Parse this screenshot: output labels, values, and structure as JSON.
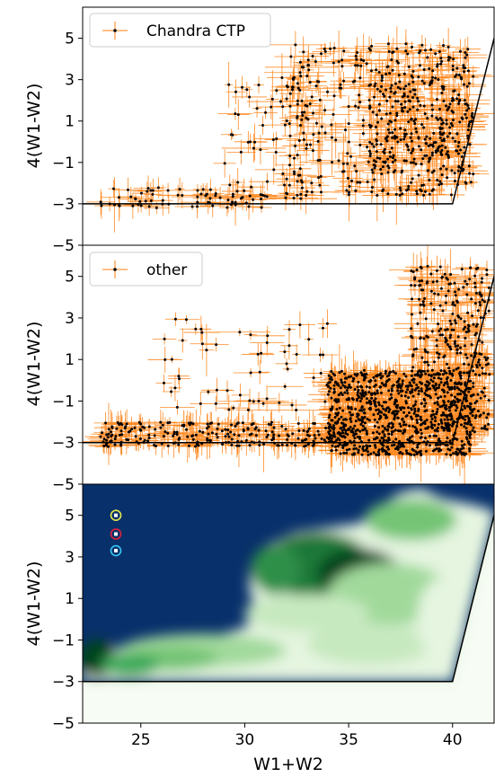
{
  "chart_data": [
    {
      "type": "scatter",
      "legend": "Chandra CTP",
      "legend_position": "top-left",
      "ylabel": "4(W1-W2)",
      "xlim": [
        22.2,
        42
      ],
      "ylim": [
        -5,
        6.5
      ],
      "yticks": [
        "5",
        "3",
        "1",
        "−1",
        "−3",
        "−5"
      ],
      "error_bars": true,
      "boundary": [
        [
          22.2,
          -3
        ],
        [
          40,
          -3
        ],
        [
          42,
          5
        ]
      ],
      "clusters": [
        {
          "x": [
            23,
            31
          ],
          "y": [
            -3.2,
            -2.2
          ],
          "n": 70
        },
        {
          "x": [
            29,
            33
          ],
          "y": [
            -2.8,
            3.6
          ],
          "n": 60
        },
        {
          "x": [
            32,
            41
          ],
          "y": [
            -2.6,
            4.8
          ],
          "n": 380
        },
        {
          "x": [
            36,
            41
          ],
          "y": [
            -1.5,
            3.5
          ],
          "n": 220
        }
      ]
    },
    {
      "type": "scatter",
      "legend": "other",
      "legend_position": "top-left",
      "ylabel": "4(W1-W2)",
      "xlim": [
        22.2,
        42
      ],
      "ylim": [
        -5,
        6.5
      ],
      "yticks": [
        "5",
        "3",
        "1",
        "−1",
        "−3",
        "−5"
      ],
      "error_bars": true,
      "boundary": [
        [
          22.2,
          -3
        ],
        [
          40,
          -3
        ],
        [
          42,
          5
        ]
      ],
      "clusters": [
        {
          "x": [
            23,
            35
          ],
          "y": [
            -3.2,
            -2.0
          ],
          "n": 250
        },
        {
          "x": [
            34,
            41
          ],
          "y": [
            -3.6,
            0.5
          ],
          "n": 900
        },
        {
          "x": [
            38,
            41.8
          ],
          "y": [
            -2.5,
            5.5
          ],
          "n": 350
        },
        {
          "x": [
            26,
            34
          ],
          "y": [
            -1.5,
            3.0
          ],
          "n": 60
        }
      ]
    },
    {
      "type": "heatmap",
      "xlabel": "W1+W2",
      "ylabel": "4(W1-W2)",
      "xlim": [
        22.2,
        42
      ],
      "ylim": [
        -5,
        6.5
      ],
      "xticks": [
        "25",
        "30",
        "35",
        "40"
      ],
      "yticks": [
        "5",
        "3",
        "1",
        "−1",
        "−3",
        "−5"
      ],
      "boundary": [
        [
          22.2,
          -3
        ],
        [
          40,
          -3
        ],
        [
          42,
          5
        ]
      ],
      "colormap": "Greens",
      "background_color": "#08306b",
      "markers": [
        {
          "x": 23.8,
          "y": 5.0,
          "color": "#e8e84a"
        },
        {
          "x": 23.8,
          "y": 4.1,
          "color": "#e0203a"
        },
        {
          "x": 23.8,
          "y": 3.3,
          "color": "#36c8f0"
        }
      ]
    }
  ],
  "colors": {
    "errorbar": "#ff7f0e",
    "point": "#000000",
    "background": "#08306b",
    "green_light": "#f7fcf5",
    "green_dark": "#00441b"
  }
}
